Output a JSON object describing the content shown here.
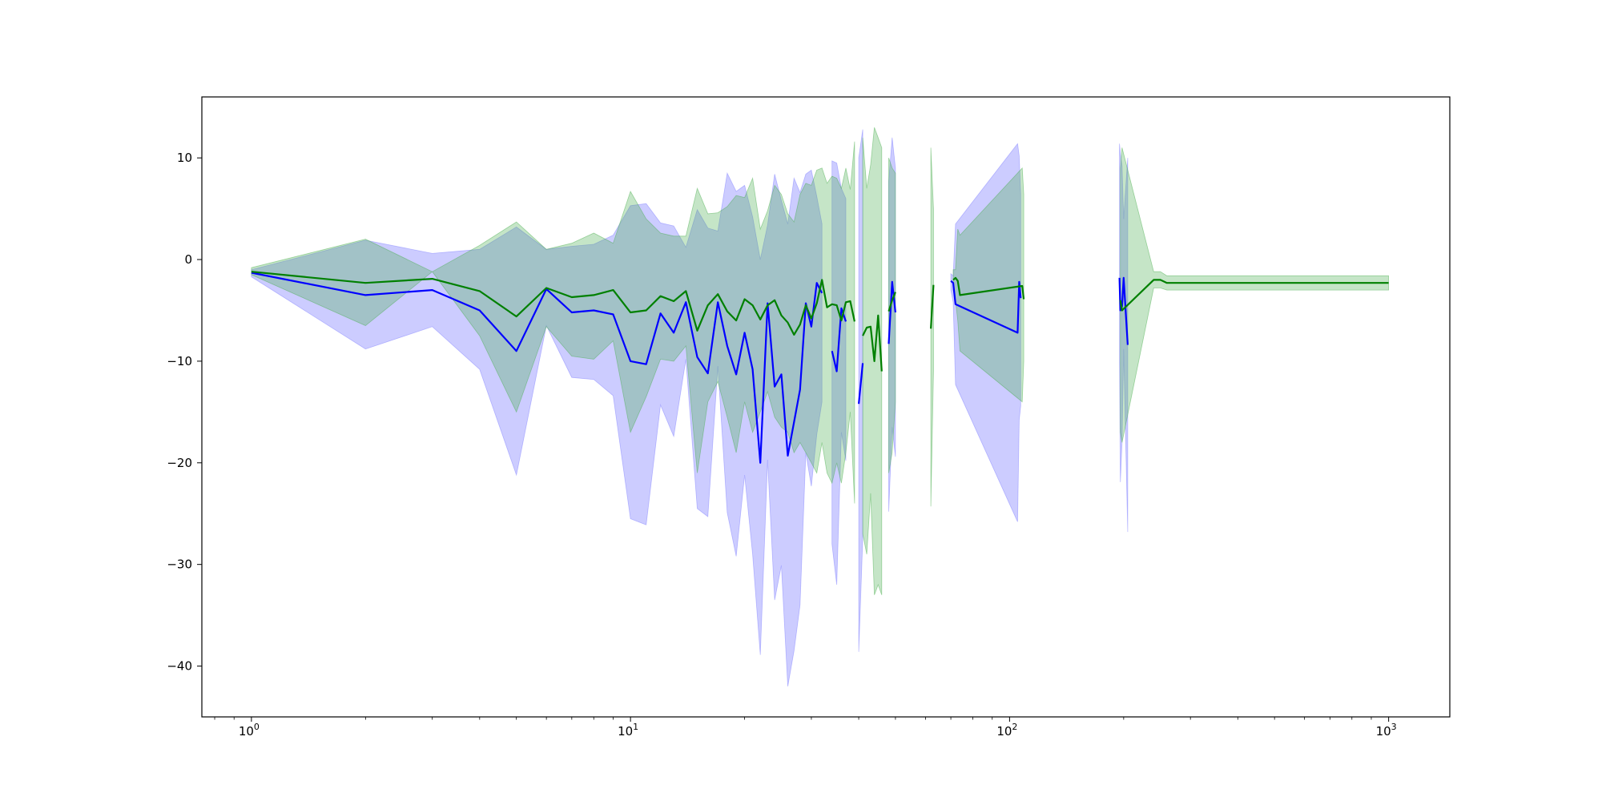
{
  "chart_data": {
    "type": "line",
    "title": "",
    "xlabel": "",
    "ylabel": "",
    "xscale": "log",
    "xlim": [
      0.74,
      1450
    ],
    "ylim": [
      -45,
      16
    ],
    "grid": false,
    "legend": "none",
    "x_ticks": [
      {
        "value": 1,
        "base": "10",
        "exp": "0"
      },
      {
        "value": 10,
        "base": "10",
        "exp": "1"
      },
      {
        "value": 100,
        "base": "10",
        "exp": "2"
      },
      {
        "value": 1000,
        "base": "10",
        "exp": "3"
      }
    ],
    "y_ticks": [
      {
        "value": 10,
        "label": "10"
      },
      {
        "value": 0,
        "label": "0"
      },
      {
        "value": -10,
        "label": "−10"
      },
      {
        "value": -20,
        "label": "−20"
      },
      {
        "value": -30,
        "label": "−30"
      },
      {
        "value": -40,
        "label": "−40"
      }
    ],
    "series": [
      {
        "color": "#0000ff",
        "band_color": "#8080ff",
        "band_opacity": 0.4,
        "points": [
          [
            1,
            -1.3,
            -1.7,
            -1.0
          ],
          [
            2,
            -3.5,
            -8.8,
            1.9
          ],
          [
            3,
            -3.0,
            -6.6,
            0.6
          ],
          [
            4,
            -5.0,
            -10.8,
            1.0
          ],
          [
            5,
            -9.0,
            -21.2,
            3.2
          ],
          [
            6,
            -2.9,
            -6.5,
            1.0
          ],
          [
            7,
            -5.2,
            -11.6,
            1.3
          ],
          [
            8,
            -5.0,
            -11.8,
            1.5
          ],
          [
            9,
            -5.4,
            -13.4,
            2.4
          ],
          [
            10,
            -10.0,
            -25.5,
            5.3
          ],
          [
            11,
            -10.3,
            -26.1,
            5.5
          ],
          [
            12,
            -5.3,
            -14.3,
            3.6
          ],
          [
            13,
            -7.2,
            -17.4,
            3.3
          ],
          [
            14,
            -4.2,
            -9.8,
            1.2
          ],
          [
            15,
            -9.6,
            -24.5,
            4.9
          ],
          [
            16,
            -11.2,
            -25.3,
            3.1
          ],
          [
            17,
            -4.2,
            -10.5,
            2.8
          ],
          [
            18,
            -8.5,
            -24.9,
            8.5
          ],
          [
            19,
            -11.3,
            -29.2,
            6.7
          ],
          [
            20,
            -7.2,
            -21.2,
            7.3
          ],
          [
            21,
            -10.8,
            -29.0,
            4.2
          ],
          [
            22,
            -20.0,
            -38.9,
            0.0
          ],
          [
            23,
            -4.3,
            -19.7,
            3.4
          ],
          [
            24,
            -12.5,
            -33.5,
            8.4
          ],
          [
            25,
            -11.3,
            -30.1,
            5.8
          ],
          [
            26,
            -19.3,
            -42.0,
            3.5
          ],
          [
            27,
            -16.0,
            -38.5,
            8.0
          ],
          [
            28,
            -12.8,
            -34.0,
            6.6
          ],
          [
            29,
            -4.3,
            -19.0,
            8.4
          ],
          [
            30,
            -6.6,
            -22.3,
            8.8
          ],
          [
            31,
            -2.3,
            -17.2,
            6.2
          ],
          [
            32,
            -3.3,
            -14.0,
            3.5
          ],
          [
            34,
            -9.0,
            -28.0,
            9.7
          ],
          [
            35,
            -11.0,
            -32.0,
            9.5
          ],
          [
            36,
            -4.8,
            -17.0,
            7.0
          ],
          [
            37,
            -6.1,
            -19.8,
            6.0
          ],
          [
            40,
            -14.2,
            -38.6,
            10.0
          ],
          [
            41,
            -10.2,
            -27.4,
            12.8
          ],
          [
            48,
            -8.3,
            -24.8,
            7.7
          ],
          [
            49,
            -2.2,
            -16.5,
            12.0
          ],
          [
            50,
            -5.2,
            -19.4,
            9.0
          ],
          [
            70,
            -2.1,
            -3.0,
            -1.4
          ],
          [
            71,
            -2.3,
            -4.2,
            -1.6
          ],
          [
            72,
            -4.4,
            -12.3,
            3.5
          ],
          [
            105,
            -7.2,
            -25.8,
            11.4
          ],
          [
            106,
            -2.2,
            -15.8,
            10.2
          ],
          [
            107,
            -3.8,
            -14.4,
            6.4
          ],
          [
            195,
            -1.8,
            -10.0,
            11.4
          ],
          [
            196,
            -5.0,
            -21.9,
            10.5
          ],
          [
            198,
            -4.6,
            -18.0,
            9.2
          ],
          [
            200,
            -1.8,
            -8.8,
            4.0
          ],
          [
            205,
            -8.4,
            -26.8,
            10.0
          ]
        ]
      },
      {
        "color": "#008000",
        "band_color": "#4caf50",
        "band_opacity": 0.32,
        "points": [
          [
            1,
            -1.2,
            -1.5,
            -0.8
          ],
          [
            2,
            -2.3,
            -6.5,
            2.0
          ],
          [
            3,
            -1.9,
            -1.2,
            -1.2
          ],
          [
            4,
            -3.1,
            -7.5,
            1.4
          ],
          [
            5,
            -5.6,
            -15.0,
            3.7
          ],
          [
            6,
            -2.8,
            -6.6,
            1.0
          ],
          [
            7,
            -3.7,
            -9.5,
            1.6
          ],
          [
            8,
            -3.5,
            -9.8,
            2.6
          ],
          [
            9,
            -3.0,
            -8.0,
            1.6
          ],
          [
            10,
            -5.2,
            -17.0,
            6.7
          ],
          [
            11,
            -5.0,
            -13.5,
            4.0
          ],
          [
            12,
            -3.6,
            -9.8,
            2.6
          ],
          [
            13,
            -4.1,
            -10.0,
            2.3
          ],
          [
            14,
            -3.1,
            -8.5,
            2.3
          ],
          [
            15,
            -7.0,
            -21.0,
            7.0
          ],
          [
            16,
            -4.5,
            -14.0,
            4.5
          ],
          [
            17,
            -3.4,
            -12.0,
            4.6
          ],
          [
            18,
            -5.1,
            -15.5,
            5.2
          ],
          [
            19,
            -6.0,
            -19.0,
            6.3
          ],
          [
            20,
            -3.9,
            -14.0,
            6.1
          ],
          [
            21,
            -4.5,
            -17.0,
            8.0
          ],
          [
            22,
            -5.9,
            -15.0,
            3.0
          ],
          [
            23,
            -4.5,
            -13.0,
            4.8
          ],
          [
            24,
            -4.0,
            -15.5,
            7.3
          ],
          [
            25,
            -5.5,
            -16.5,
            6.4
          ],
          [
            26,
            -6.2,
            -17.0,
            4.5
          ],
          [
            27,
            -7.4,
            -19.0,
            3.7
          ],
          [
            28,
            -6.4,
            -18.0,
            6.4
          ],
          [
            29,
            -4.5,
            -19.0,
            7.5
          ],
          [
            30,
            -5.8,
            -20.0,
            7.3
          ],
          [
            31,
            -4.3,
            -21.0,
            8.8
          ],
          [
            32,
            -2.0,
            -18.0,
            9.0
          ],
          [
            33,
            -4.7,
            -21.0,
            7.5
          ],
          [
            34,
            -4.4,
            -22.0,
            8.2
          ],
          [
            35,
            -4.5,
            -20.0,
            8.0
          ],
          [
            36,
            -6.0,
            -22.0,
            7.0
          ],
          [
            37,
            -4.2,
            -19.0,
            9.0
          ],
          [
            38,
            -4.1,
            -15.0,
            6.9
          ],
          [
            39,
            -6.1,
            -24.0,
            11.6
          ],
          [
            41,
            -7.5,
            -27.0,
            12.0
          ],
          [
            42,
            -6.7,
            -29.0,
            7.0
          ],
          [
            43,
            -6.6,
            -23.0,
            9.3
          ],
          [
            44,
            -10.0,
            -33.0,
            13.0
          ],
          [
            45,
            -5.5,
            -32.0,
            12.0
          ],
          [
            46,
            -11.0,
            -33.0,
            11.0
          ],
          [
            48,
            -5.1,
            -21.0,
            10.0
          ],
          [
            49,
            -4.0,
            -19.0,
            9.0
          ],
          [
            50,
            -3.2,
            -14.0,
            8.5
          ],
          [
            62,
            -6.8,
            -24.3,
            11.0
          ],
          [
            63,
            -2.5,
            -11.0,
            5.0
          ],
          [
            71,
            -2.0,
            -3.0,
            -1.0
          ],
          [
            72,
            -1.8,
            -4.0,
            -1.0
          ],
          [
            73,
            -2.1,
            -6.0,
            3.0
          ],
          [
            74,
            -3.5,
            -9.0,
            2.4
          ],
          [
            108,
            -2.6,
            -14.0,
            9.0
          ],
          [
            109,
            -3.9,
            -10.0,
            6.4
          ],
          [
            196,
            -4.0,
            -17.0,
            9.0
          ],
          [
            198,
            -5.0,
            -18.0,
            11.0
          ],
          [
            240,
            -2.0,
            -2.8,
            -1.2
          ],
          [
            250,
            -2.0,
            -2.8,
            -1.2
          ],
          [
            260,
            -2.3,
            -3.0,
            -1.6
          ],
          [
            400,
            -2.3,
            -3.0,
            -1.6
          ],
          [
            600,
            -2.3,
            -3.0,
            -1.6
          ],
          [
            800,
            -2.3,
            -3.0,
            -1.6
          ],
          [
            1000,
            -2.3,
            -3.0,
            -1.6
          ]
        ]
      }
    ]
  }
}
